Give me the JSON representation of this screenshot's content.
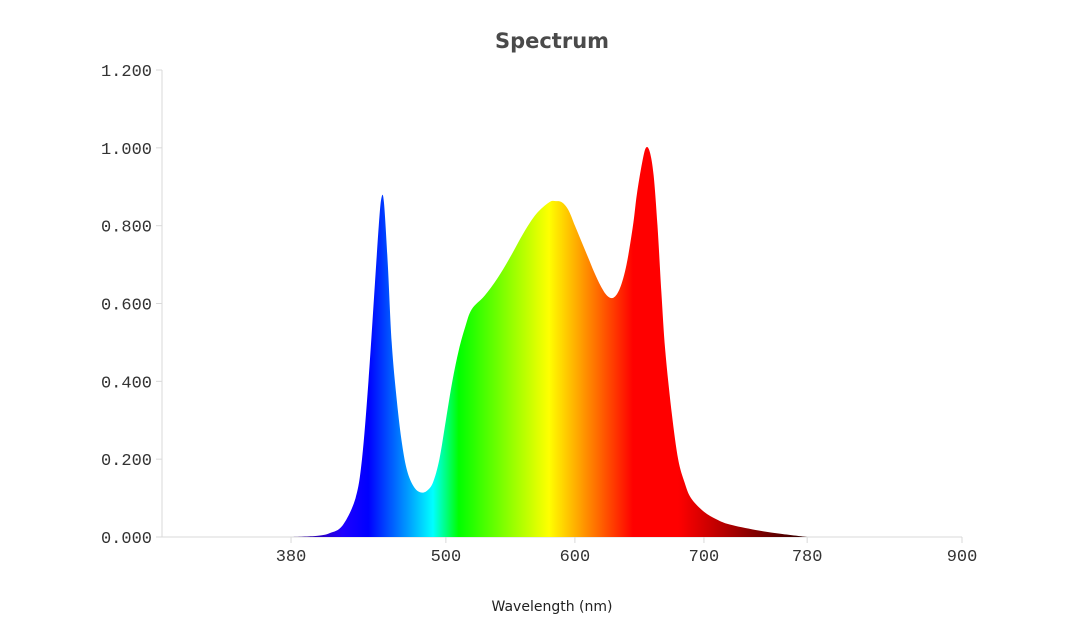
{
  "chart_data": {
    "type": "area",
    "title": "Spectrum",
    "xlabel": "Wavelength (nm)",
    "ylabel": "",
    "xlim": [
      280,
      900
    ],
    "ylim": [
      0,
      1.2
    ],
    "x_ticks": [
      380,
      500,
      600,
      700,
      780,
      900
    ],
    "x_tick_labels": [
      "380",
      "500",
      "600",
      "700",
      "780",
      "900"
    ],
    "y_ticks": [
      0,
      0.2,
      0.4,
      0.6,
      0.8,
      1.0,
      1.2
    ],
    "y_tick_labels": [
      "0.000",
      "0.200",
      "0.400",
      "0.600",
      "0.800",
      "1.000",
      "1.200"
    ],
    "grid": false,
    "fill": "visible-spectrum color gradient by wavelength",
    "series": [
      {
        "x": [
          380,
          400,
          410,
          420,
          430,
          435,
          440,
          445,
          448,
          450,
          452,
          455,
          458,
          462,
          466,
          470,
          475,
          480,
          485,
          490,
          495,
          500,
          505,
          510,
          515,
          520,
          530,
          540,
          550,
          560,
          570,
          580,
          585,
          590,
          595,
          600,
          605,
          610,
          615,
          620,
          625,
          630,
          635,
          640,
          645,
          648,
          652,
          655,
          658,
          661,
          664,
          667,
          670,
          675,
          680,
          685,
          690,
          700,
          710,
          720,
          740,
          760,
          780
        ],
        "y": [
          0.0,
          0.003,
          0.01,
          0.03,
          0.1,
          0.2,
          0.4,
          0.65,
          0.8,
          0.87,
          0.86,
          0.7,
          0.5,
          0.35,
          0.24,
          0.17,
          0.13,
          0.115,
          0.118,
          0.14,
          0.2,
          0.3,
          0.4,
          0.48,
          0.54,
          0.585,
          0.62,
          0.665,
          0.72,
          0.78,
          0.83,
          0.86,
          0.863,
          0.86,
          0.84,
          0.8,
          0.76,
          0.72,
          0.68,
          0.645,
          0.62,
          0.615,
          0.64,
          0.7,
          0.8,
          0.88,
          0.96,
          1.0,
          0.99,
          0.93,
          0.8,
          0.63,
          0.48,
          0.32,
          0.2,
          0.14,
          0.1,
          0.065,
          0.045,
          0.032,
          0.018,
          0.008,
          0.0
        ]
      }
    ]
  }
}
